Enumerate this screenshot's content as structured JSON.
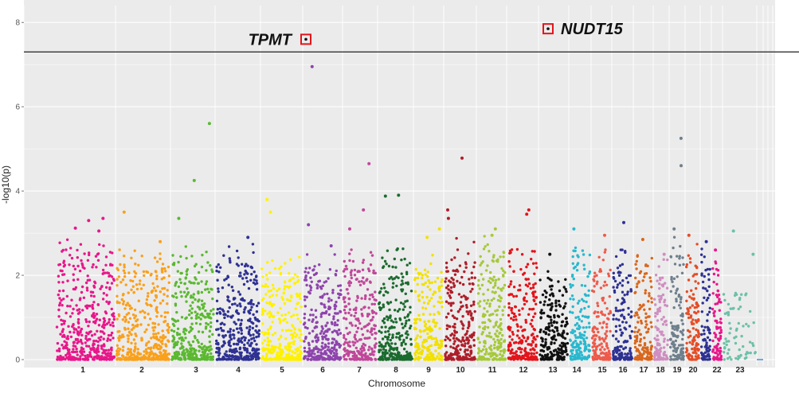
{
  "chart_data": {
    "type": "scatter",
    "subtype": "manhattan",
    "xlabel": "Chromosome",
    "ylabel": "-log10(p)",
    "ylim": [
      0,
      8.4
    ],
    "y_ticks": [
      0,
      2,
      4,
      6,
      8
    ],
    "grid": true,
    "legend": "none",
    "threshold": 7.3,
    "chromosomes": [
      {
        "label": "1",
        "color": "#E8178A",
        "max": 2.6,
        "top": [
          3.3,
          3.05,
          3.35,
          3.12
        ]
      },
      {
        "label": "2",
        "color": "#FAA01A",
        "max": 2.4,
        "top": [
          3.5,
          2.8
        ]
      },
      {
        "label": "3",
        "color": "#5BB930",
        "max": 2.4,
        "top": [
          5.6,
          4.25,
          3.35
        ]
      },
      {
        "label": "4",
        "color": "#2E3192",
        "max": 2.4,
        "top": [
          2.9
        ]
      },
      {
        "label": "5",
        "color": "#FFF200",
        "max": 2.2,
        "top": [
          3.8,
          3.5
        ]
      },
      {
        "label": "6",
        "color": "#8E44AD",
        "max": 2.3,
        "top": [
          6.95,
          3.2,
          2.7
        ]
      },
      {
        "label": "7",
        "color": "#C0479A",
        "max": 2.5,
        "top": [
          4.65,
          3.55,
          3.1
        ]
      },
      {
        "label": "8",
        "color": "#1B6B2F",
        "max": 2.5,
        "top": [
          3.9,
          3.88
        ]
      },
      {
        "label": "9",
        "color": "#F2E100",
        "max": 2.2,
        "top": [
          3.1,
          2.9
        ]
      },
      {
        "label": "10",
        "color": "#AE1E2A",
        "max": 2.6,
        "top": [
          4.78,
          3.55,
          3.35
        ]
      },
      {
        "label": "11",
        "color": "#A6C93A",
        "max": 2.6,
        "top": [
          3.1,
          2.95
        ]
      },
      {
        "label": "12",
        "color": "#E3141B",
        "max": 2.5,
        "top": [
          3.55,
          3.45
        ]
      },
      {
        "label": "13",
        "color": "#111111",
        "max": 2.1,
        "top": [
          2.5
        ]
      },
      {
        "label": "14",
        "color": "#29B8CE",
        "max": 2.5,
        "top": [
          3.1
        ]
      },
      {
        "label": "15",
        "color": "#EE5A4B",
        "max": 2.4,
        "top": [
          2.95
        ]
      },
      {
        "label": "16",
        "color": "#2E3192",
        "max": 2.5,
        "top": [
          3.25
        ]
      },
      {
        "label": "17",
        "color": "#D9661C",
        "max": 2.4,
        "top": [
          2.85
        ]
      },
      {
        "label": "18",
        "color": "#CF8EC1",
        "max": 2.3,
        "top": [
          2.5
        ]
      },
      {
        "label": "19",
        "color": "#6F7F8C",
        "max": 2.6,
        "top": [
          5.25,
          4.6,
          3.1
        ]
      },
      {
        "label": "20",
        "color": "#E44D26",
        "max": 2.4,
        "top": [
          2.95
        ]
      },
      {
        "label": "",
        "color": "#2E3192",
        "max": 2.4,
        "top": [
          2.8
        ]
      },
      {
        "label": "22",
        "color": "#E8178A",
        "max": 2.4,
        "top": [
          2.6
        ]
      },
      {
        "label": "23",
        "color": "#6CC1A8",
        "max": 1.6,
        "top": [
          3.05,
          2.5
        ]
      }
    ],
    "annotations": [
      {
        "text": "TPMT",
        "chromosome": "6",
        "y": 7.6
      },
      {
        "text": "NUDT15",
        "chromosome": "13",
        "y": 7.85
      }
    ]
  }
}
